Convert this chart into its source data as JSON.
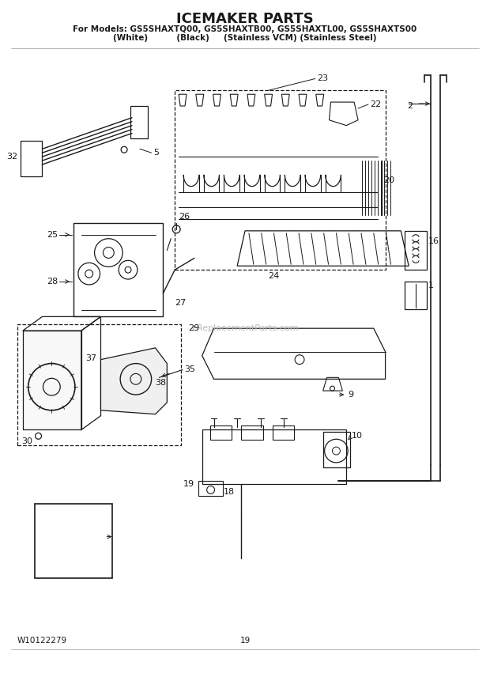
{
  "title": "ICEMAKER PARTS",
  "subtitle1": "For Models: GS5SHAXTQ00, GS5SHAXTB00, GS5SHAXTL00, GS5SHAXTS00",
  "subtitle2": "(White)          (Black)     (Stainless VCM) (Stainless Steel)",
  "watermark": "eReplacementParts.com",
  "part_number": "W10122279",
  "page_number": "19",
  "bg_color": "#ffffff",
  "lc": "#1a1a1a"
}
